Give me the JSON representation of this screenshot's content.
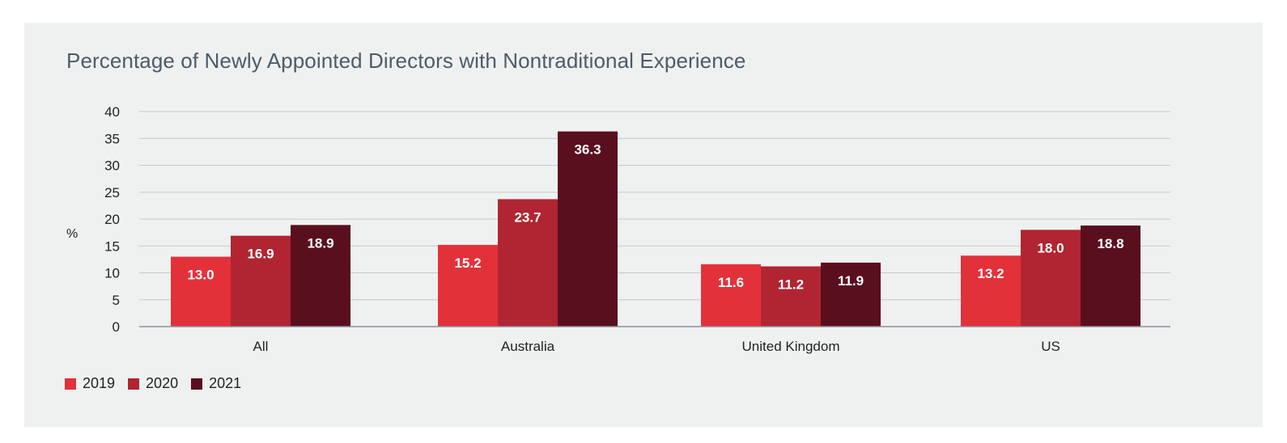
{
  "chart_data": {
    "type": "bar",
    "title": "Percentage of Newly Appointed Directors with Nontraditional Experience",
    "ylabel": "%",
    "xlabel": "",
    "ylim": [
      0,
      40
    ],
    "yticks": [
      "0",
      "5",
      "10",
      "15",
      "20",
      "25",
      "30",
      "35",
      "40"
    ],
    "categories": [
      "All",
      "Australia",
      "United Kingdom",
      "US"
    ],
    "series": [
      {
        "name": "2019",
        "color": "#e3313a",
        "values": [
          13.0,
          15.2,
          11.6,
          13.2
        ],
        "labels": [
          "13.0",
          "15.2",
          "11.6",
          "13.2"
        ]
      },
      {
        "name": "2020",
        "color": "#b02531",
        "values": [
          16.9,
          23.7,
          11.2,
          18.0
        ],
        "labels": [
          "16.9",
          "23.7",
          "11.2",
          "18.0"
        ]
      },
      {
        "name": "2021",
        "color": "#5a0f1e",
        "values": [
          18.9,
          36.3,
          11.9,
          18.8
        ],
        "labels": [
          "18.9",
          "36.3",
          "11.9",
          "18.8"
        ]
      }
    ],
    "grid": true,
    "legend_position": "bottom-left"
  }
}
